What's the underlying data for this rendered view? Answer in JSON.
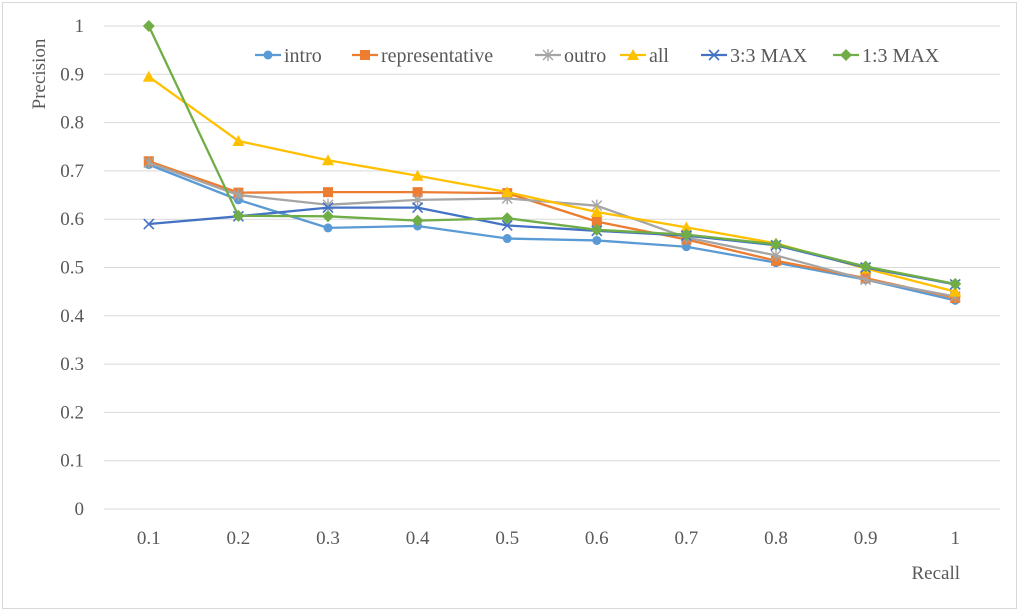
{
  "chart_data": {
    "type": "line",
    "xlabel": "Recall",
    "ylabel": "Precision",
    "categories": [
      "0.1",
      "0.2",
      "0.3",
      "0.4",
      "0.5",
      "0.6",
      "0.7",
      "0.8",
      "0.9",
      "1"
    ],
    "ylim": [
      0,
      1
    ],
    "yticks": [
      "0",
      "0.1",
      "0.2",
      "0.3",
      "0.4",
      "0.5",
      "0.6",
      "0.7",
      "0.8",
      "0.9",
      "1"
    ],
    "grid": "horizontal",
    "legend_position": "top-right",
    "series": [
      {
        "name": "intro",
        "color": "#5b9bd5",
        "marker": "circle",
        "values": [
          0.713,
          0.64,
          0.582,
          0.586,
          0.56,
          0.556,
          0.543,
          0.51,
          0.475,
          0.432
        ]
      },
      {
        "name": "representative",
        "color": "#ed7d31",
        "marker": "square",
        "values": [
          0.72,
          0.655,
          0.656,
          0.656,
          0.654,
          0.595,
          0.558,
          0.514,
          0.478,
          0.437
        ]
      },
      {
        "name": "outro",
        "color": "#a5a5a5",
        "marker": "star",
        "values": [
          0.717,
          0.65,
          0.63,
          0.64,
          0.643,
          0.628,
          0.562,
          0.525,
          0.475,
          0.44
        ]
      },
      {
        "name": "all",
        "color": "#ffc000",
        "marker": "triangle",
        "values": [
          0.895,
          0.762,
          0.722,
          0.69,
          0.656,
          0.615,
          0.583,
          0.55,
          0.498,
          0.45
        ]
      },
      {
        "name": "3:3 MAX",
        "color": "#4472c4",
        "marker": "x",
        "values": [
          0.59,
          0.606,
          0.624,
          0.624,
          0.587,
          0.576,
          0.566,
          0.546,
          0.5,
          0.465
        ]
      },
      {
        "name": "1:3 MAX",
        "color": "#70ad47",
        "marker": "diamond",
        "values": [
          1.0,
          0.607,
          0.606,
          0.597,
          0.602,
          0.578,
          0.568,
          0.548,
          0.502,
          0.466
        ]
      }
    ]
  }
}
